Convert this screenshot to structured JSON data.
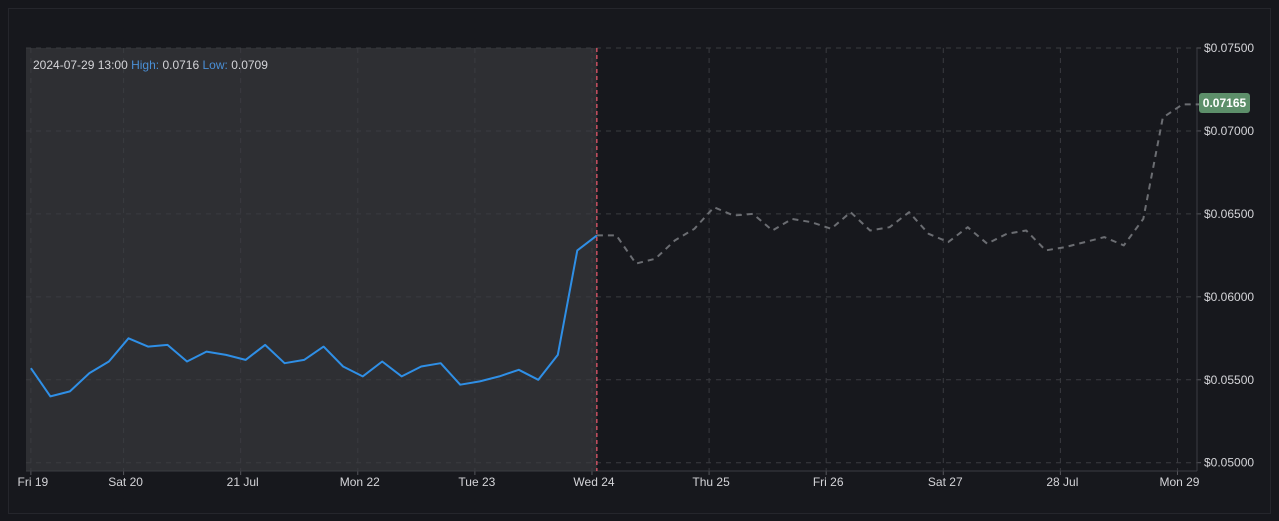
{
  "legend": {
    "timestamp": "2024-07-29 13:00",
    "high_label": "High:",
    "high_value": "0.0716",
    "low_label": "Low:",
    "low_value": "0.0709"
  },
  "current_price": "0.07165",
  "colors": {
    "background": "#17181d",
    "history_region": "#2e2f33",
    "history_line": "#2f8fe6",
    "forecast_line": "#6b6d72",
    "divider": "#f05a6e",
    "price_tag": "#5d8f6a"
  },
  "chart_data": {
    "type": "line",
    "title": "",
    "xlabel": "",
    "ylabel": "",
    "x_ticks": [
      {
        "label": "Fri 19",
        "x": 0
      },
      {
        "label": "Sat 20",
        "x": 4.75
      },
      {
        "label": "21 Jul",
        "x": 10.75
      },
      {
        "label": "Mon 22",
        "x": 16.75
      },
      {
        "label": "Tue 23",
        "x": 22.75
      },
      {
        "label": "Wed 24",
        "x": 28.75
      },
      {
        "label": "Thu 25",
        "x": 34.75
      },
      {
        "label": "Fri 26",
        "x": 40.75
      },
      {
        "label": "Sat 27",
        "x": 46.75
      },
      {
        "label": "28 Jul",
        "x": 52.75
      },
      {
        "label": "Mon 29",
        "x": 58.75
      }
    ],
    "y_ticks": [
      "$0.05000",
      "$0.05500",
      "$0.06000",
      "$0.06500",
      "$0.07000",
      "$0.07500"
    ],
    "y_tick_values": [
      0.05,
      0.055,
      0.06,
      0.065,
      0.07,
      0.075
    ],
    "ylim": [
      0.0495,
      0.075
    ],
    "xlim": [
      -0.25,
      59.75
    ],
    "grid": true,
    "divider_x": 29,
    "series": [
      {
        "style": "solid",
        "x": [
          0,
          1,
          2,
          3,
          4,
          5,
          6,
          7,
          8,
          9,
          10,
          11,
          12,
          13,
          14,
          15,
          16,
          17,
          18,
          19,
          20,
          21,
          22,
          23,
          24,
          25,
          26,
          27,
          28,
          29
        ],
        "y": [
          0.0557,
          0.054,
          0.0543,
          0.0554,
          0.0561,
          0.0575,
          0.057,
          0.0571,
          0.0561,
          0.0567,
          0.0565,
          0.0562,
          0.0571,
          0.056,
          0.0562,
          0.057,
          0.0558,
          0.0552,
          0.0561,
          0.0552,
          0.0558,
          0.056,
          0.0547,
          0.0549,
          0.0552,
          0.0556,
          0.055,
          0.0565,
          0.0628,
          0.0637
        ]
      },
      {
        "style": "dashed",
        "x": [
          29,
          30,
          31,
          32,
          33,
          34,
          35,
          36,
          37,
          38,
          39,
          40,
          41,
          42,
          43,
          44,
          45,
          46,
          47,
          48,
          49,
          50,
          51,
          52,
          53,
          54,
          55,
          56,
          57,
          58,
          59,
          60
        ],
        "y": [
          0.0637,
          0.0637,
          0.062,
          0.0623,
          0.0634,
          0.0641,
          0.0654,
          0.0649,
          0.065,
          0.064,
          0.0647,
          0.0645,
          0.0641,
          0.0651,
          0.064,
          0.0642,
          0.0651,
          0.0638,
          0.0633,
          0.0642,
          0.0632,
          0.0638,
          0.064,
          0.0628,
          0.063,
          0.0633,
          0.0636,
          0.0631,
          0.0647,
          0.0708,
          0.0716,
          0.0716
        ]
      }
    ]
  }
}
